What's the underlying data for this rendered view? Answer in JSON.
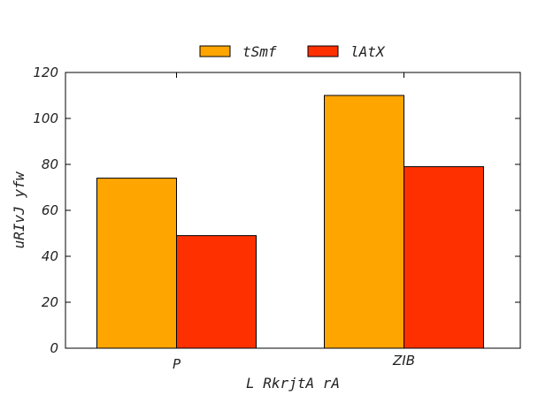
{
  "chart_data": {
    "type": "bar",
    "categories": [
      "P",
      "ZIB"
    ],
    "series": [
      {
        "name": "tSmf",
        "values": [
          74,
          110
        ],
        "color": "#ffa500"
      },
      {
        "name": "lAtX",
        "values": [
          49,
          79
        ],
        "color": "#ff3000"
      }
    ],
    "xlabel": "L RkrjtA rA",
    "ylabel": "uRIvJ yfw",
    "ylim": [
      0,
      120
    ],
    "yticks": [
      0,
      20,
      40,
      60,
      80,
      100,
      120
    ],
    "legend": "top-center",
    "grid": false
  }
}
